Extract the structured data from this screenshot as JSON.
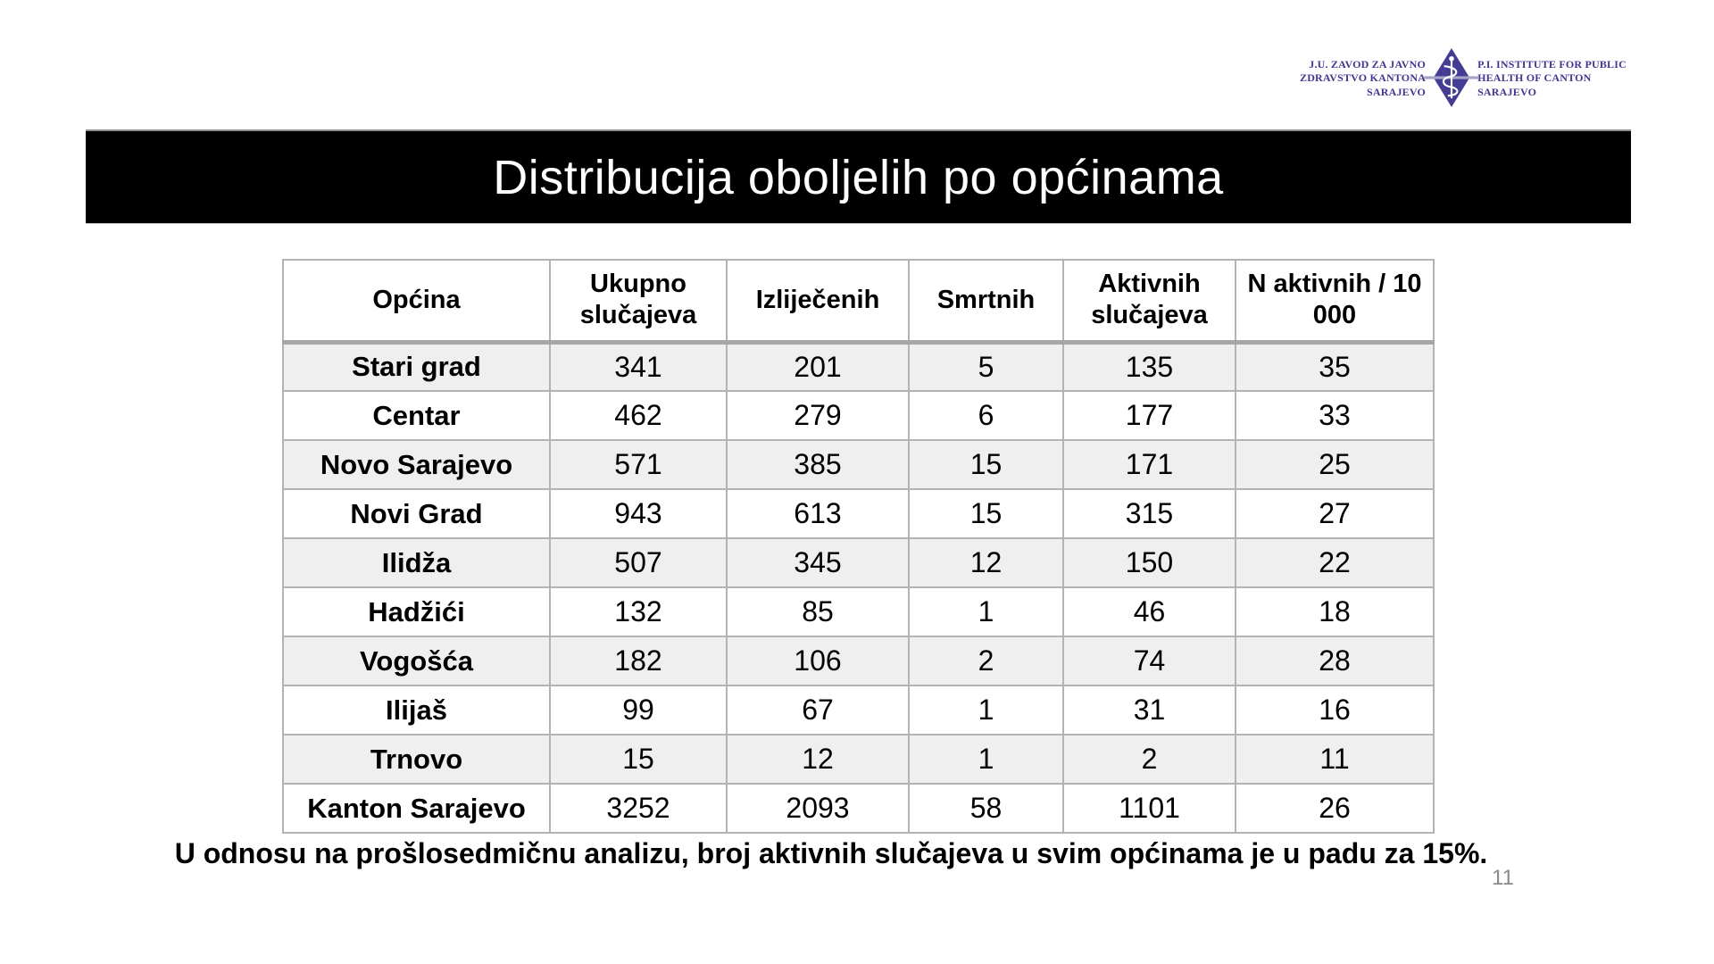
{
  "logo": {
    "left_lines": [
      "J.U. ZAVOD ZA JAVNO",
      "ZDRAVSTVO KANTONA",
      "SARAJEVO"
    ],
    "right_lines": [
      "P.I. INSTITUTE FOR PUBLIC",
      "HEALTH OF CANTON",
      "SARAJEVO"
    ],
    "brand_color": "#453d94",
    "emblem": "caduceus-diamond-icon"
  },
  "banner": {
    "title": "Distribucija oboljelih po općinama",
    "background_color": "#000000",
    "text_color": "#ffffff"
  },
  "table": {
    "columns": [
      "Općina",
      "Ukupno slučajeva",
      "Izliječenih",
      "Smrtnih",
      "Aktivnih slučajeva",
      "N aktivnih / 10 000"
    ],
    "rows": [
      {
        "opcina": "Stari grad",
        "values": [
          341,
          201,
          5,
          135,
          35
        ]
      },
      {
        "opcina": "Centar",
        "values": [
          462,
          279,
          6,
          177,
          33
        ]
      },
      {
        "opcina": "Novo Sarajevo",
        "values": [
          571,
          385,
          15,
          171,
          25
        ]
      },
      {
        "opcina": "Novi Grad",
        "values": [
          943,
          613,
          15,
          315,
          27
        ]
      },
      {
        "opcina": "Ilidža",
        "values": [
          507,
          345,
          12,
          150,
          22
        ]
      },
      {
        "opcina": "Hadžići",
        "values": [
          132,
          85,
          1,
          46,
          18
        ]
      },
      {
        "opcina": "Vogošća",
        "values": [
          182,
          106,
          2,
          74,
          28
        ]
      },
      {
        "opcina": "Ilijaš",
        "values": [
          99,
          67,
          1,
          31,
          16
        ]
      },
      {
        "opcina": "Trnovo",
        "values": [
          15,
          12,
          1,
          2,
          11
        ]
      },
      {
        "opcina": "Kanton Sarajevo",
        "values": [
          3252,
          2093,
          58,
          1101,
          26
        ]
      }
    ],
    "zebra_color": "#efefef",
    "border_color": "#b3b3b3"
  },
  "caption": "U odnosu na prošlosedmičnu analizu, broj aktivnih slučajeva u svim općinama je u padu za 15%.",
  "page_number": "11"
}
